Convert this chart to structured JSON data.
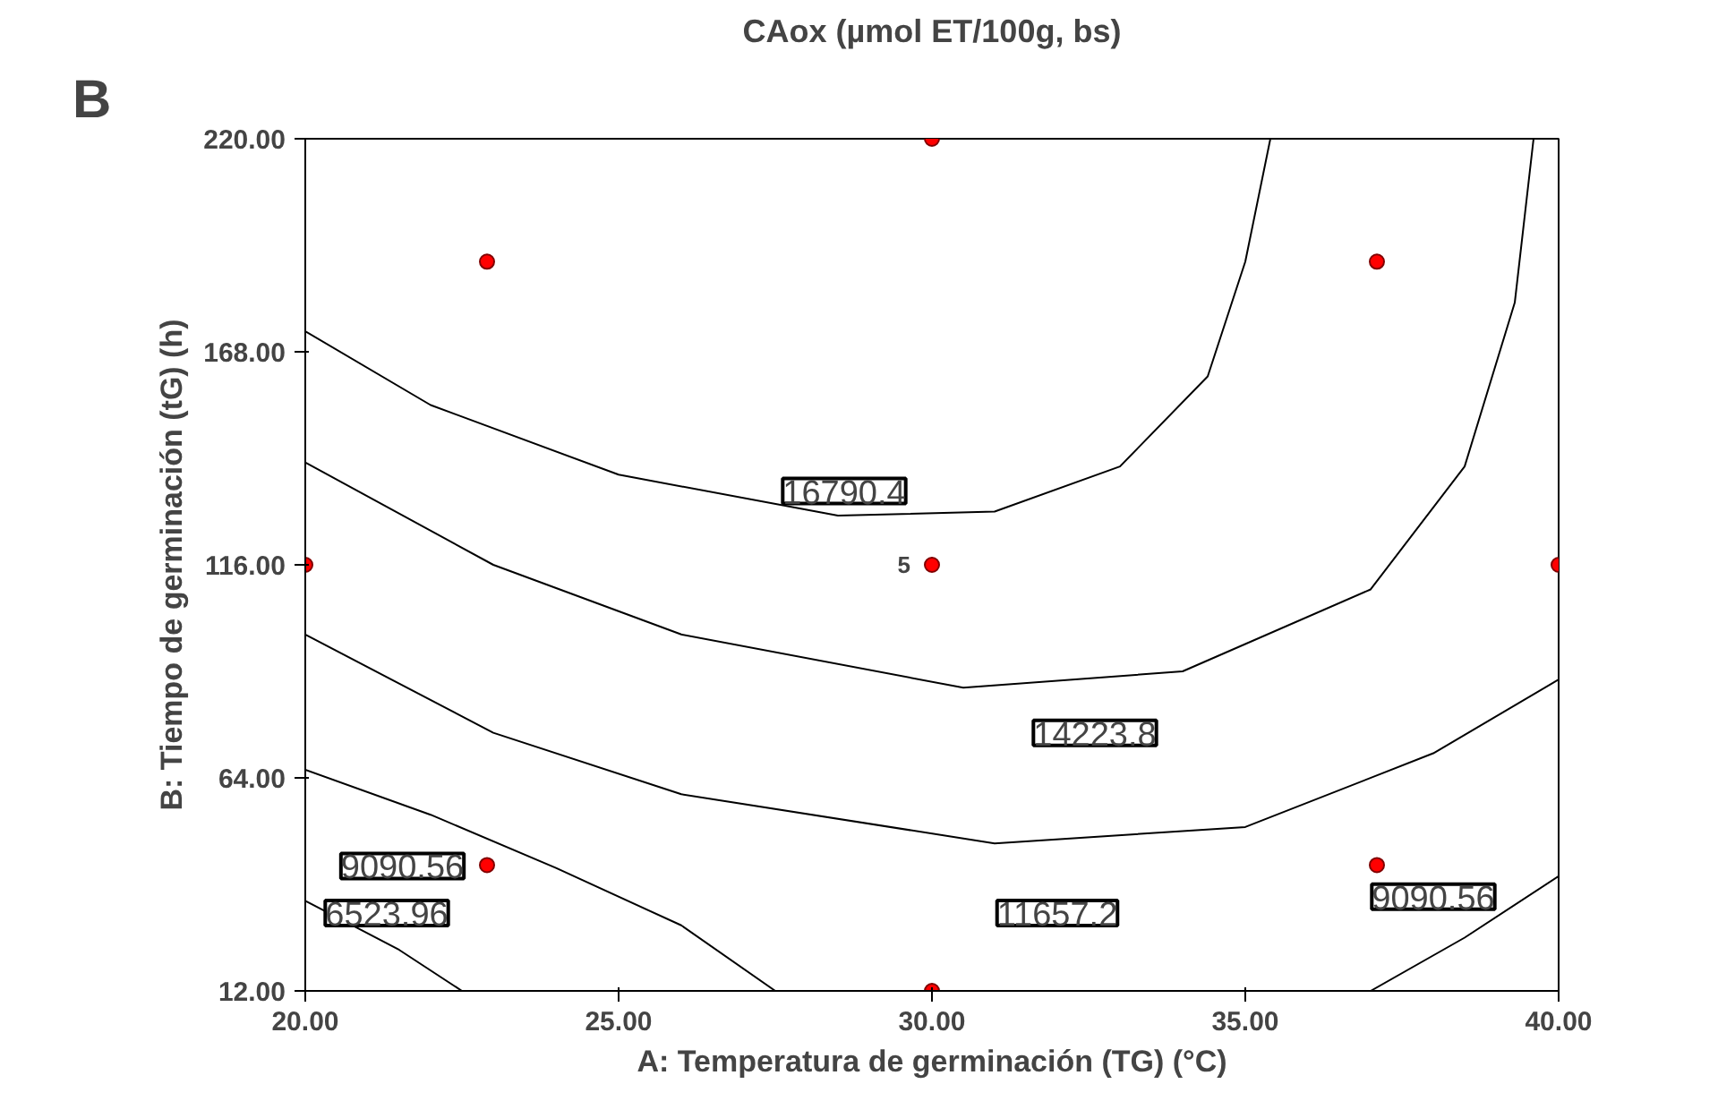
{
  "chart_data": {
    "type": "line",
    "title": "CAox (µmol ET/100g, bs)",
    "xlabel": "A: Temperatura de germinación (TG) (°C)",
    "ylabel": "B: Tiempo de germinación (tG) (h)",
    "xlim": [
      20,
      40
    ],
    "ylim": [
      12,
      220
    ],
    "xticks": [
      {
        "value": 20,
        "label": "20.00"
      },
      {
        "value": 25,
        "label": "25.00"
      },
      {
        "value": 30,
        "label": "30.00"
      },
      {
        "value": 35,
        "label": "35.00"
      },
      {
        "value": 40,
        "label": "40.00"
      }
    ],
    "yticks": [
      {
        "value": 12,
        "label": "12.00"
      },
      {
        "value": 64,
        "label": "64.00"
      },
      {
        "value": 116,
        "label": "116.00"
      },
      {
        "value": 168,
        "label": "168.00"
      },
      {
        "value": 220,
        "label": "220.00"
      }
    ],
    "grid": false,
    "series": [
      {
        "color": "#000000",
        "x": [
          20,
          22,
          25,
          28.5,
          31,
          33,
          34.4,
          35,
          35.4
        ],
        "values": [
          173,
          155,
          138,
          128,
          129,
          140,
          162,
          190,
          220
        ]
      },
      {
        "color": "#000000",
        "x": [
          20,
          23,
          26,
          30.5,
          34,
          37,
          38.5,
          39.3,
          39.6
        ],
        "values": [
          141,
          116,
          99,
          86,
          90,
          110,
          140,
          180,
          220
        ]
      },
      {
        "type": "line",
        "color": "#000000",
        "x": [
          20,
          23,
          26,
          31,
          35,
          38,
          40
        ],
        "values": [
          99,
          75,
          60,
          48,
          52,
          70,
          88
        ]
      },
      {
        "type": "line",
        "color": "#000000",
        "x": [
          20,
          22,
          24,
          26,
          27.5
        ],
        "values": [
          66,
          55,
          42,
          28,
          12
        ]
      },
      {
        "type": "line",
        "color": "#000000",
        "x": [
          37,
          38.5,
          40
        ],
        "values": [
          12,
          25,
          40
        ]
      },
      {
        "type": "line",
        "color": "#000000",
        "x": [
          20,
          21.5,
          22.5
        ],
        "values": [
          34,
          22,
          12
        ]
      },
      {
        "type": "scatter",
        "color": "#ff0000",
        "marker": "circle",
        "x": [
          20,
          40,
          30,
          30,
          30,
          22.9,
          37.1,
          22.9,
          37.1
        ],
        "values": [
          116,
          116,
          12,
          220,
          116,
          190,
          190,
          42.7,
          42.7
        ]
      }
    ],
    "annotations": [
      "B",
      "16790.4",
      "14223.8",
      "11657.2",
      "9090.56",
      "9090.56",
      "6523.96",
      {
        "text": "5",
        "x": 30,
        "y": 116
      }
    ]
  }
}
